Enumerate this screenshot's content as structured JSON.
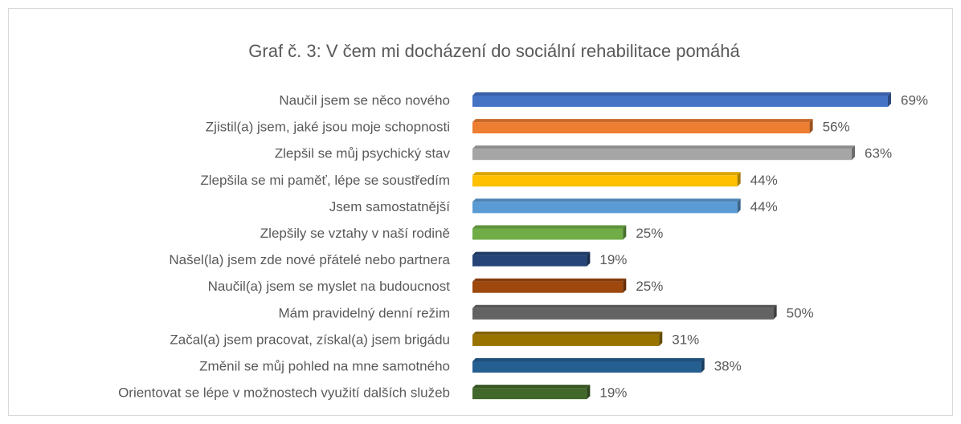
{
  "chart_data": {
    "type": "bar",
    "orientation": "horizontal",
    "title": "Graf č. 3: V čem mi docházení do sociální rehabilitace pomáhá",
    "categories": [
      "Naučil jsem se něco nového",
      "Zjistil(a) jsem, jaké jsou moje schopnosti",
      "Zlepšil se můj psychický stav",
      "Zlepšila se mi paměť, lépe se soustředím",
      "Jsem samostatnější",
      "Zlepšily se vztahy v naší rodině",
      "Našel(la) jsem zde nové přátelé nebo partnera",
      "Naučil(a) jsem se myslet na budoucnost",
      "Mám pravidelný denní režim",
      "Začal(a) jsem pracovat, získal(a) jsem brigádu",
      "Změnil se můj pohled na mne samotného",
      "Orientovat se lépe v možnostech využití dalších služeb"
    ],
    "values": [
      69,
      56,
      63,
      44,
      44,
      25,
      19,
      25,
      50,
      31,
      38,
      19
    ],
    "value_labels": [
      "69%",
      "56%",
      "63%",
      "44%",
      "44%",
      "25%",
      "19%",
      "25%",
      "50%",
      "31%",
      "38%",
      "19%"
    ],
    "colors": [
      "#4472c4",
      "#ed7d31",
      "#a5a5a5",
      "#ffc000",
      "#5b9bd5",
      "#70ad47",
      "#264478",
      "#9e480e",
      "#636363",
      "#997300",
      "#255e91",
      "#43682b"
    ]
  }
}
